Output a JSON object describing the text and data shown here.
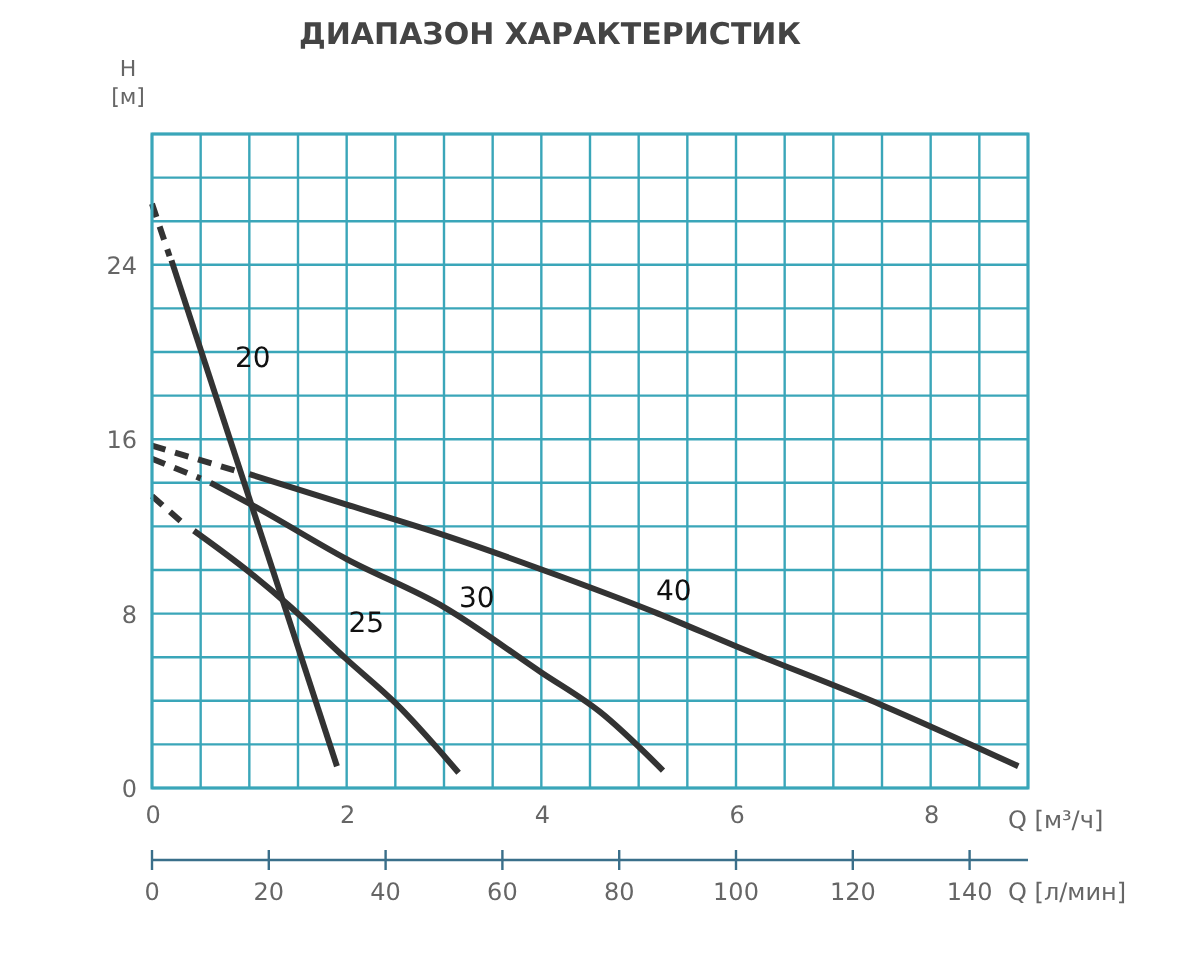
{
  "chart_data": {
    "type": "line",
    "title": "ДИАПАЗОН ХАРАКТЕРИСТИК",
    "xlabel": "Q [м³/ч]",
    "ylabel": "H [м]",
    "x2label": "Q [л/мин]",
    "xlim": [
      0,
      9
    ],
    "ylim": [
      0,
      30
    ],
    "x2lim": [
      0,
      150
    ],
    "xticks": [
      0,
      {
        "value": 0.5,
        "label": null
      },
      {
        "value": 1,
        "label": null
      },
      {
        "value": 1.5,
        "label": null
      },
      2,
      {
        "value": 2.5,
        "label": null
      },
      {
        "value": 3,
        "label": null
      },
      {
        "value": 3.5,
        "label": null
      },
      4,
      {
        "value": 4.5,
        "label": null
      },
      {
        "value": 5,
        "label": null
      },
      {
        "value": 5.5,
        "label": null
      },
      6,
      {
        "value": 6.5,
        "label": null
      },
      {
        "value": 7,
        "label": null
      },
      {
        "value": 7.5,
        "label": null
      },
      8,
      {
        "value": 8.5,
        "label": null
      },
      {
        "value": 9,
        "label": null
      }
    ],
    "yticks": [
      0,
      {
        "value": 2,
        "label": null
      },
      {
        "value": 4,
        "label": null
      },
      {
        "value": 6,
        "label": null
      },
      8,
      {
        "value": 10,
        "label": null
      },
      {
        "value": 12,
        "label": null
      },
      {
        "value": 14,
        "label": null
      },
      16,
      {
        "value": 18,
        "label": null
      },
      {
        "value": 20,
        "label": null
      },
      {
        "value": 22,
        "label": null
      },
      24,
      {
        "value": 26,
        "label": null
      },
      {
        "value": 28,
        "label": null
      },
      {
        "value": 30,
        "label": null
      }
    ],
    "x2ticks": [
      0,
      20,
      40,
      60,
      80,
      100,
      120,
      140
    ],
    "grid": true,
    "marker": "none",
    "series": [
      {
        "color": "#333333",
        "line_style": "dashed",
        "x": [
          0,
          0.18
        ],
        "values": [
          26.8,
          24.4
        ]
      },
      {
        "name": "20",
        "color": "#333333",
        "line_style": "solid",
        "x": [
          0.2,
          1.9
        ],
        "values": [
          24.2,
          1.0
        ]
      },
      {
        "color": "#333333",
        "line_style": "dashed",
        "x": [
          0,
          0.33
        ],
        "values": [
          13.4,
          12.1
        ]
      },
      {
        "name": "25",
        "color": "#333333",
        "line_style": "solid",
        "x": [
          0.43,
          1.0,
          1.4,
          2.0,
          2.5,
          3.15
        ],
        "values": [
          11.8,
          9.9,
          8.4,
          5.9,
          3.9,
          0.7
        ]
      },
      {
        "color": "#333333",
        "line_style": "dashed",
        "x": [
          0,
          0.5
        ],
        "values": [
          15.1,
          14.2
        ]
      },
      {
        "name": "30",
        "color": "#333333",
        "line_style": "solid",
        "x": [
          0.6,
          1.1,
          2.0,
          3.0,
          4.0,
          4.6,
          5.25
        ],
        "values": [
          14.0,
          12.8,
          10.5,
          8.3,
          5.3,
          3.5,
          0.8
        ]
      },
      {
        "color": "#333333",
        "line_style": "dashed",
        "x": [
          0,
          0.9
        ],
        "values": [
          15.7,
          14.5
        ]
      },
      {
        "name": "40",
        "color": "#333333",
        "line_style": "solid",
        "x": [
          1.0,
          2.0,
          3.0,
          4.2,
          5.2,
          6.0,
          7.5,
          8.9
        ],
        "values": [
          14.4,
          13.0,
          11.6,
          9.7,
          8.0,
          6.5,
          3.8,
          1.0
        ]
      }
    ]
  }
}
